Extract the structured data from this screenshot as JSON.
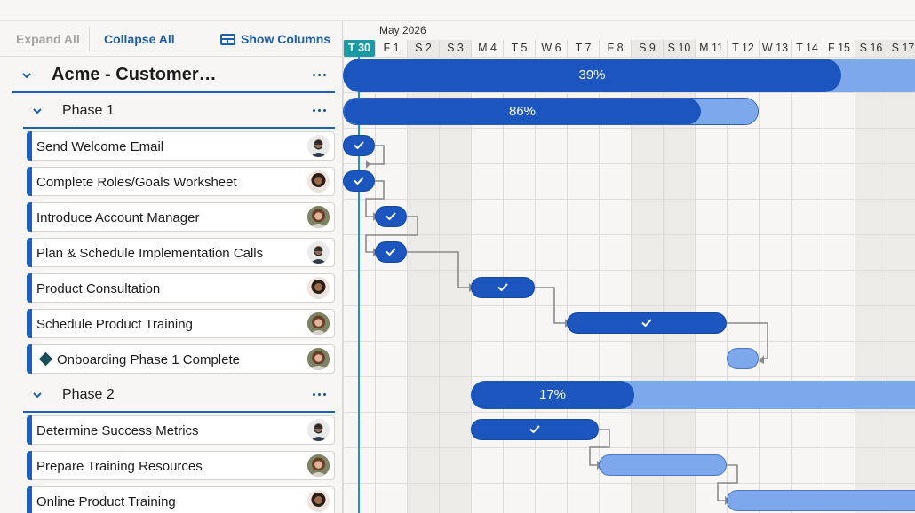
{
  "toolbar": {
    "expand_all": "Expand All",
    "collapse_all": "Collapse All",
    "show_columns": "Show Columns"
  },
  "project": {
    "title": "Acme - Customer…",
    "progress_label": "39%",
    "progress": 0.39
  },
  "phases": [
    {
      "title": "Phase 1",
      "progress_label": "86%",
      "progress": 0.86,
      "tasks": [
        {
          "name": "Send Welcome Email",
          "avatar": "man-glasses-avatar",
          "done": true
        },
        {
          "name": "Complete Roles/Goals Worksheet",
          "avatar": "woman-curly-avatar",
          "done": true
        },
        {
          "name": "Introduce Account Manager",
          "avatar": "woman-redhead-avatar",
          "done": true
        },
        {
          "name": "Plan & Schedule Implementation Calls",
          "avatar": "man-glasses-avatar",
          "done": true
        },
        {
          "name": "Product Consultation",
          "avatar": "woman-curly-avatar",
          "done": true
        },
        {
          "name": "Schedule Product Training",
          "avatar": "woman-redhead-avatar",
          "done": true
        },
        {
          "name": "Onboarding Phase 1 Complete",
          "avatar": "woman-redhead-avatar",
          "done": false,
          "milestone": true
        }
      ]
    },
    {
      "title": "Phase 2",
      "progress_label": "17%",
      "progress": 0.17,
      "tasks": [
        {
          "name": "Determine Success Metrics",
          "avatar": "man-glasses-avatar",
          "done": true
        },
        {
          "name": "Prepare Training Resources",
          "avatar": "woman-redhead-avatar",
          "done": false
        },
        {
          "name": "Online Product Training",
          "avatar": "woman-curly-avatar",
          "done": false
        }
      ]
    }
  ],
  "timeline": {
    "month": "May 2026",
    "days": [
      "T 30",
      "F 1",
      "S 2",
      "S 3",
      "M 4",
      "T 5",
      "W 6",
      "T 7",
      "F 8",
      "S 9",
      "S 10",
      "M 11",
      "T 12",
      "W 13",
      "T 14",
      "F 15",
      "S 16",
      "S 17"
    ],
    "today": "T 30",
    "weekend_days": [
      "S 2",
      "S 3",
      "S 9",
      "S 10",
      "S 16",
      "S 17"
    ]
  },
  "colors": {
    "accent": "#1b55bd",
    "remaining": "#7ea8ec",
    "today": "#1a9aa4",
    "link": "#8a8a8a"
  }
}
